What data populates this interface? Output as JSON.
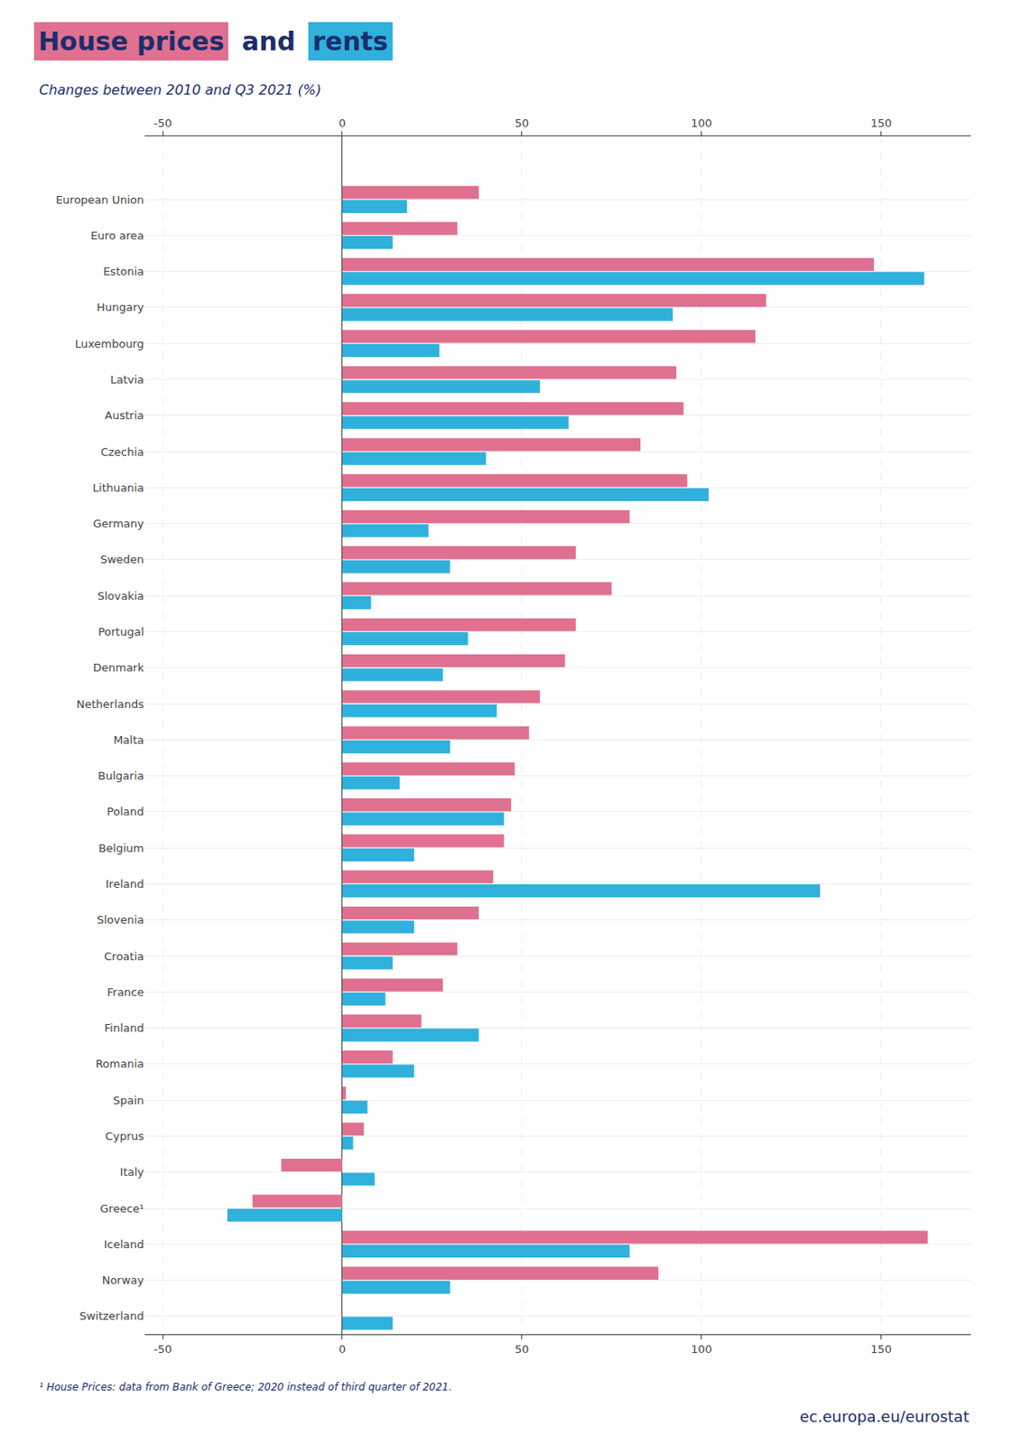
{
  "chart_data": {
    "type": "bar",
    "orientation": "horizontal",
    "title": "House prices and rents",
    "subtitle": "Changes between 2010 and Q3 2021 (%)",
    "annotations": [
      "¹ House Prices: data from Bank of Greece; 2020 instead of third quarter of 2021.",
      "ec.europa.eu/eurostat"
    ],
    "categories": [
      "European Union",
      "Euro area",
      "Estonia",
      "Hungary",
      "Luxembourg",
      "Latvia",
      "Austria",
      "Czechia",
      "Lithuania",
      "Germany",
      "Sweden",
      "Slovakia",
      "Portugal",
      "Denmark",
      "Netherlands",
      "Malta",
      "Bulgaria",
      "Poland",
      "Belgium",
      "Ireland",
      "Slovenia",
      "Croatia",
      "France",
      "Finland",
      "Romania",
      "Spain",
      "Cyprus",
      "Italy",
      "Greece¹",
      "Iceland",
      "Norway",
      "Switzerland"
    ],
    "series": [
      {
        "name": "House prices",
        "color": "#E07090",
        "values": [
          38,
          32,
          148,
          118,
          115,
          93,
          95,
          83,
          96,
          80,
          65,
          75,
          65,
          62,
          55,
          52,
          48,
          47,
          45,
          42,
          38,
          32,
          28,
          22,
          14,
          1,
          6,
          -17,
          -25,
          163,
          88,
          0
        ]
      },
      {
        "name": "rents",
        "color": "#30B0DC",
        "values": [
          18,
          14,
          162,
          92,
          27,
          55,
          63,
          40,
          102,
          24,
          30,
          8,
          35,
          28,
          43,
          30,
          16,
          45,
          20,
          133,
          20,
          14,
          12,
          38,
          20,
          7,
          3,
          9,
          -32,
          80,
          30,
          14
        ]
      }
    ],
    "xlim": [
      -55,
      175
    ],
    "xticks": [
      -50,
      0,
      50,
      100,
      150
    ],
    "grid": true
  }
}
